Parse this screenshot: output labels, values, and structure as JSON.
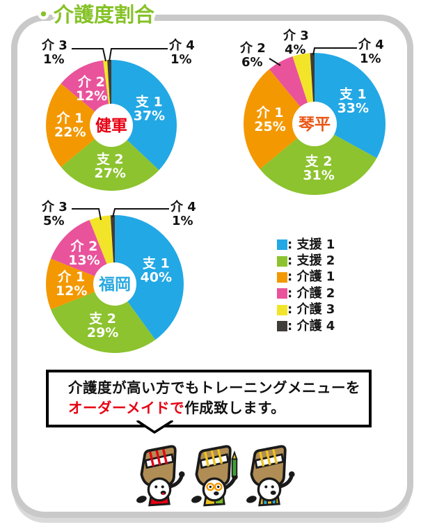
{
  "page": {
    "title": "・介護度割合"
  },
  "series_colors": [
    "#22A8E5",
    "#8CC32E",
    "#F39800",
    "#E9539B",
    "#F2E529",
    "#3F3C3A"
  ],
  "chart_data": [
    {
      "type": "pie",
      "center_label": "健軍",
      "center_label_color": "#E60012",
      "unit": "%",
      "slices": [
        {
          "label": "支 1",
          "value": 37
        },
        {
          "label": "支 2",
          "value": 27
        },
        {
          "label": "介 1",
          "value": 22
        },
        {
          "label": "介 2",
          "value": 12
        },
        {
          "label": "介 3",
          "value": 1
        },
        {
          "label": "介 4",
          "value": 1
        }
      ]
    },
    {
      "type": "pie",
      "center_label": "琴平",
      "center_label_color": "#EA5514",
      "unit": "%",
      "slices": [
        {
          "label": "支 1",
          "value": 33
        },
        {
          "label": "支 2",
          "value": 31
        },
        {
          "label": "介 1",
          "value": 25
        },
        {
          "label": "介 2",
          "value": 6
        },
        {
          "label": "介 3",
          "value": 4
        },
        {
          "label": "介 4",
          "value": 1
        }
      ]
    },
    {
      "type": "pie",
      "center_label": "福岡",
      "center_label_color": "#2AA9E0",
      "unit": "%",
      "slices": [
        {
          "label": "支 1",
          "value": 40
        },
        {
          "label": "支 2",
          "value": 29
        },
        {
          "label": "介 1",
          "value": 12
        },
        {
          "label": "介 2",
          "value": 13
        },
        {
          "label": "介 3",
          "value": 5
        },
        {
          "label": "介 4",
          "value": 1
        }
      ]
    }
  ],
  "legend": {
    "items": [
      {
        "label": ": 支援 1"
      },
      {
        "label": ": 支援 2"
      },
      {
        "label": ": 介護 1"
      },
      {
        "label": ": 介護 2"
      },
      {
        "label": ": 介護 3"
      },
      {
        "label": ": 介護 4"
      }
    ]
  },
  "note": {
    "line1": "介護度が高い方でもトレーニングメニューを",
    "line2_red": "オーダーメイドで",
    "line2_black": "作成致します。"
  },
  "mascots": [
    {
      "name": "mascot-red-scarf",
      "accent_color": "#E60012",
      "lace_color": "#E60012",
      "extra_color": "#E60012"
    },
    {
      "name": "mascot-glasses-pencil",
      "accent_color": "#EFC31F",
      "lace_color": "#EFC31F",
      "extra_color": "#7AB829"
    },
    {
      "name": "mascot-yellow-vest",
      "accent_color": "#EFC31F",
      "lace_color": "#EFC31F",
      "extra_color": "#2AA9E0"
    }
  ],
  "colors": {
    "title_green": "#85C226",
    "frame_gray": "#C9C9C9",
    "note_red": "#E60012",
    "bag_brown": "#B08D55"
  }
}
